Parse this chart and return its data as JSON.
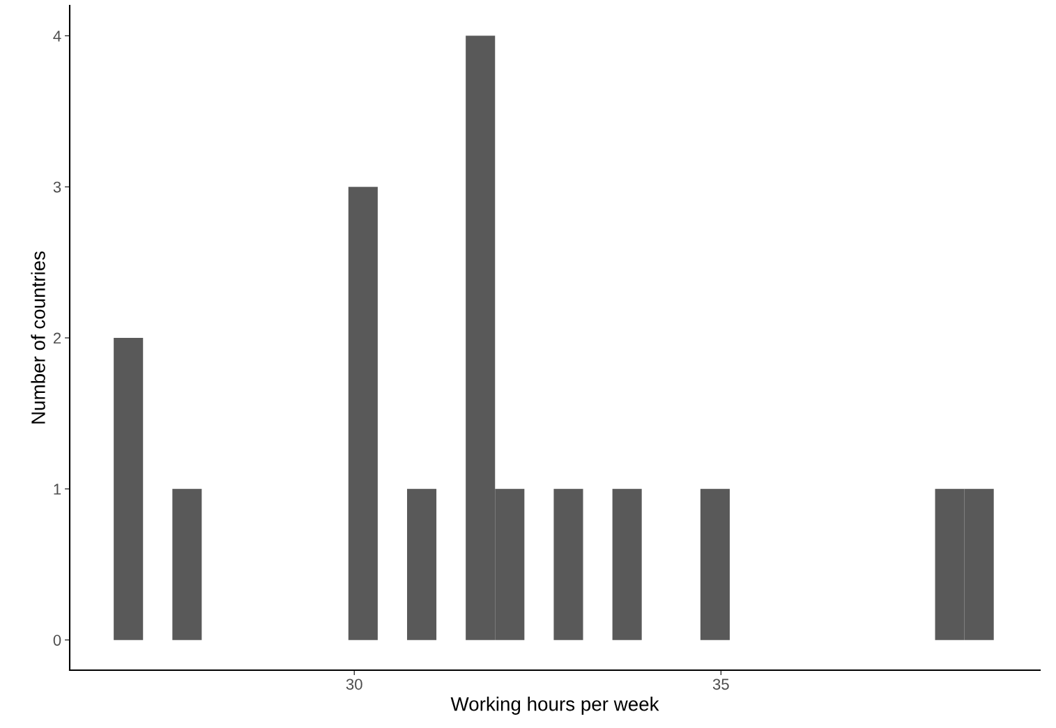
{
  "chart_data": {
    "type": "histogram",
    "xlabel": "Working hours per week",
    "ylabel": "Number of countries",
    "bins": [
      26.72,
      27.12,
      27.52,
      27.92,
      28.32,
      28.72,
      29.12,
      29.52,
      29.92,
      30.32,
      30.72,
      31.12,
      31.52,
      31.92,
      32.32,
      32.72,
      33.12,
      33.52,
      33.92,
      34.32,
      34.72,
      35.12,
      35.52,
      35.92,
      36.32,
      36.72,
      37.12,
      37.52,
      37.92,
      38.32,
      38.72
    ],
    "values": [
      2,
      0,
      1,
      0,
      0,
      0,
      0,
      0,
      3,
      0,
      1,
      0,
      4,
      1,
      0,
      1,
      0,
      1,
      0,
      0,
      1,
      0,
      0,
      0,
      0,
      0,
      0,
      0,
      1,
      1
    ],
    "color": "#595959",
    "xlim": [
      26.12,
      39.35
    ],
    "xticks": [
      30,
      35
    ],
    "ylim": [
      -0.2,
      4.2
    ],
    "yticks": [
      0,
      1,
      2,
      3,
      4
    ],
    "grid": false,
    "legend": false
  }
}
